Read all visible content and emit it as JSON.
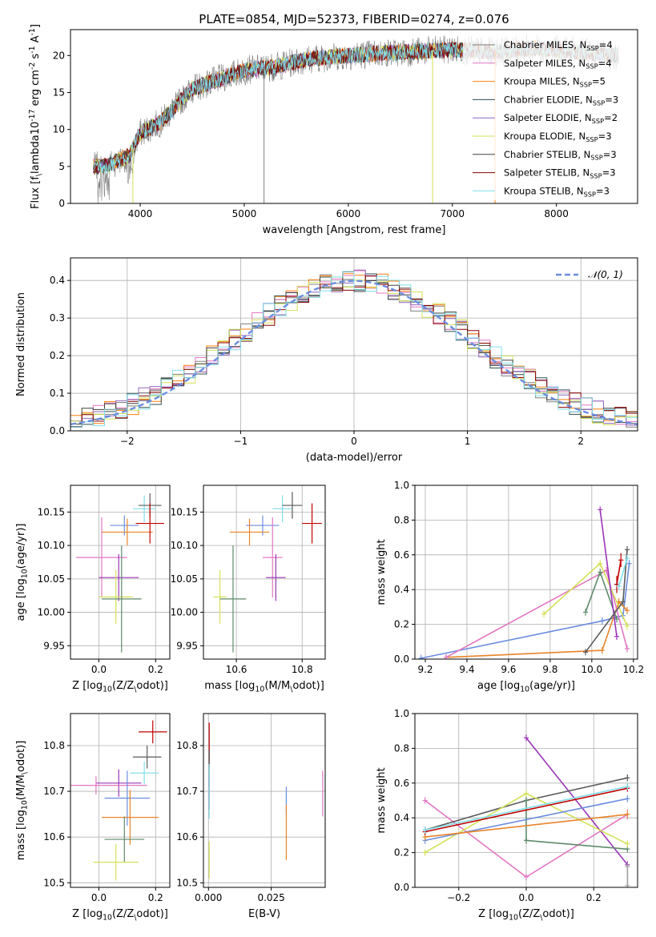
{
  "figure_title": "PLATE=0854, MJD=52373, FIBERID=0274, z=0.076",
  "chart_data": [
    {
      "id": "spectrum",
      "type": "line",
      "xlabel": "wavelength [Angstrom, rest frame]",
      "ylabel": "Flux [f$_\\lambda$10$^{-17}$ erg cm$^{-2}$ s$^{-1}$ A$^{-1}$]",
      "xlim": [
        3330,
        8780
      ],
      "ylim": [
        0,
        23.5
      ],
      "xticks": [
        4000,
        5000,
        6000,
        7000,
        8000
      ],
      "yticks": [
        0,
        5,
        10,
        15,
        20
      ],
      "grid": false,
      "legend": "right",
      "x_extent": [
        3550,
        8600
      ],
      "continuum": {
        "x": [
          3550,
          3700,
          3900,
          4000,
          4200,
          4500,
          4800,
          5000,
          5300,
          5600,
          6000,
          6300,
          6600,
          7000,
          7400,
          7800,
          8200,
          8600
        ],
        "y": [
          5,
          5.2,
          6.5,
          9.5,
          11,
          15.5,
          17,
          18,
          18.5,
          19.5,
          20,
          20.3,
          20.5,
          20.8,
          20.5,
          21,
          20.5,
          20
        ]
      },
      "series": [
        {
          "name": "Chabrier MILES, N$_{SSP}$=4",
          "color": "#808080"
        },
        {
          "name": "Salpeter MILES, N$_{SSP}$=4",
          "color": "#e377c2"
        },
        {
          "name": "Kroupa MILES, N$_{SSP}$=5",
          "color": "#ff7f0e"
        },
        {
          "name": "Chabrier ELODIE, N$_{SSP}$=3",
          "color": "#2f4f4f"
        },
        {
          "name": "Salpeter ELODIE, N$_{SSP}$=2",
          "color": "#9467bd"
        },
        {
          "name": "Kroupa ELODIE, N$_{SSP}$=3",
          "color": "#d4e157"
        },
        {
          "name": "Chabrier STELIB, N$_{SSP}$=3",
          "color": "#404040"
        },
        {
          "name": "Salpeter STELIB, N$_{SSP}$=3",
          "color": "#8b0000"
        },
        {
          "name": "Kroupa STELIB, N$_{SSP}$=3",
          "color": "#80deea"
        }
      ]
    },
    {
      "id": "residuals",
      "type": "line",
      "xlabel": "(data-model)/error",
      "ylabel": "Normed distribution",
      "xlim": [
        -2.5,
        2.5
      ],
      "ylim": [
        0,
        0.46
      ],
      "xticks": [
        -2,
        -1,
        0,
        1,
        2
      ],
      "yticks": [
        0.0,
        0.1,
        0.2,
        0.3,
        0.4
      ],
      "grid": true,
      "legend": "top-right",
      "normal_label": "$\\mathcal{N}(0,1)$",
      "bin_width": 0.1,
      "hist_colors": [
        "#808080",
        "#e377c2",
        "#ff7f0e",
        "#2f4f4f",
        "#9467bd",
        "#d4e157",
        "#404040",
        "#8b0000",
        "#80deea"
      ]
    },
    {
      "id": "age-vs-Z",
      "type": "scatter",
      "xlabel": "Z [log$_{10}$($Z/Z_\\odot$)]",
      "ylabel": "age  [log$_{10}$($age/yr$)]",
      "xlim": [
        -0.1,
        0.25
      ],
      "ylim": [
        9.93,
        10.19
      ],
      "xticks": [
        0.0,
        0.2
      ],
      "yticks": [
        9.95,
        10.0,
        10.05,
        10.1,
        10.15
      ],
      "grid": true,
      "points": [
        {
          "x": 0.09,
          "y": 10.13,
          "xerr": 0.05,
          "yerr": 0.015,
          "color": "#6b8de0"
        },
        {
          "x": 0.1,
          "y": 10.12,
          "xerr": 0.09,
          "yerr": 0.02,
          "color": "#e8842a"
        },
        {
          "x": 0.16,
          "y": 10.155,
          "xerr": 0.04,
          "yerr": 0.02,
          "color": "#80deea"
        },
        {
          "x": 0.18,
          "y": 10.16,
          "xerr": 0.04,
          "yerr": 0.018,
          "color": "#5a5a5a"
        },
        {
          "x": 0.18,
          "y": 10.133,
          "xerr": 0.05,
          "yerr": 0.03,
          "color": "#c00000"
        },
        {
          "x": 0.01,
          "y": 10.082,
          "xerr": 0.09,
          "yerr": 0.06,
          "color": "#e377c2"
        },
        {
          "x": 0.07,
          "y": 10.052,
          "xerr": 0.07,
          "yerr": 0.035,
          "color": "#9a35b8"
        },
        {
          "x": 0.06,
          "y": 10.023,
          "xerr": 0.06,
          "yerr": 0.04,
          "color": "#d4e157"
        },
        {
          "x": 0.08,
          "y": 10.02,
          "xerr": 0.07,
          "yerr": 0.08,
          "color": "#5e8a6a"
        }
      ]
    },
    {
      "id": "age-vs-mass",
      "type": "scatter",
      "xlabel": "mass [log$_{10}$($M/M_\\odot$)]",
      "ylabel": "",
      "xlim": [
        10.5,
        10.87
      ],
      "ylim": [
        9.93,
        10.19
      ],
      "xticks": [
        10.6,
        10.8
      ],
      "yticks": [
        9.95,
        10.0,
        10.05,
        10.1,
        10.15
      ],
      "grid": true,
      "points": [
        {
          "x": 10.68,
          "y": 10.13,
          "xerr": 0.05,
          "yerr": 0.015,
          "color": "#6b8de0"
        },
        {
          "x": 10.64,
          "y": 10.12,
          "xerr": 0.06,
          "yerr": 0.02,
          "color": "#e8842a"
        },
        {
          "x": 10.74,
          "y": 10.155,
          "xerr": 0.03,
          "yerr": 0.02,
          "color": "#80deea"
        },
        {
          "x": 10.77,
          "y": 10.16,
          "xerr": 0.03,
          "yerr": 0.02,
          "color": "#5a5a5a"
        },
        {
          "x": 10.83,
          "y": 10.133,
          "xerr": 0.03,
          "yerr": 0.03,
          "color": "#c00000"
        },
        {
          "x": 10.71,
          "y": 10.082,
          "xerr": 0.03,
          "yerr": 0.06,
          "color": "#e377c2"
        },
        {
          "x": 10.72,
          "y": 10.052,
          "xerr": 0.03,
          "yerr": 0.035,
          "color": "#9a35b8"
        },
        {
          "x": 10.55,
          "y": 10.023,
          "xerr": 0.02,
          "yerr": 0.04,
          "color": "#d4e157"
        },
        {
          "x": 10.59,
          "y": 10.02,
          "xerr": 0.04,
          "yerr": 0.08,
          "color": "#5e8a6a"
        }
      ]
    },
    {
      "id": "weight-vs-age",
      "type": "line",
      "xlabel": "age  [log$_{10}$($age/yr$)]",
      "ylabel": "mass weight",
      "xlim": [
        9.15,
        10.22
      ],
      "ylim": [
        0,
        1.0
      ],
      "xticks": [
        9.2,
        9.4,
        9.6,
        9.8,
        10.0,
        10.2
      ],
      "yticks": [
        0.0,
        0.2,
        0.4,
        0.6,
        0.8,
        1.0
      ],
      "grid": true,
      "series": [
        {
          "color": "#6b8de0",
          "x": [
            9.18,
            10.05,
            10.15,
            10.18
          ],
          "y": [
            0.005,
            0.22,
            0.25,
            0.55
          ],
          "err": [
            0.02,
            0.02,
            0.02,
            0.02
          ]
        },
        {
          "color": "#e8842a",
          "x": [
            9.3,
            10.05,
            10.13,
            10.17
          ],
          "y": [
            0.01,
            0.05,
            0.33,
            0.28
          ],
          "err": [
            0.01,
            0.02,
            0.02,
            0.02
          ]
        },
        {
          "color": "#e377c2",
          "x": [
            9.3,
            10.07,
            10.17
          ],
          "y": [
            0.01,
            0.51,
            0.06
          ],
          "err": [
            0.01,
            0.02,
            0.02
          ]
        },
        {
          "color": "#d4e157",
          "x": [
            9.77,
            10.04,
            10.17
          ],
          "y": [
            0.26,
            0.55,
            0.19
          ],
          "err": [
            0.01,
            0.02,
            0.02
          ]
        },
        {
          "color": "#5e8a6a",
          "x": [
            9.97,
            10.04,
            10.12
          ],
          "y": [
            0.27,
            0.5,
            0.23
          ],
          "err": [
            0.02,
            0.02,
            0.02
          ]
        },
        {
          "color": "#9a35b8",
          "x": [
            10.04,
            10.12
          ],
          "y": [
            0.86,
            0.13
          ],
          "err": [
            0.01,
            0.02
          ]
        },
        {
          "color": "#5a5a5a",
          "x": [
            9.97,
            10.15,
            10.17
          ],
          "y": [
            0.04,
            0.33,
            0.63
          ],
          "err": [
            0.01,
            0.02,
            0.02
          ]
        },
        {
          "color": "#c00000",
          "x": [
            10.12,
            10.14
          ],
          "y": [
            0.43,
            0.57
          ],
          "err": [
            0.05,
            0.04
          ]
        },
        {
          "color": "#80deea",
          "x": [
            10.13,
            10.17
          ],
          "y": [
            0.42,
            0.58
          ],
          "err": [
            0.02,
            0.02
          ]
        }
      ]
    },
    {
      "id": "mass-vs-Z",
      "type": "scatter",
      "xlabel": "Z [log$_{10}$($Z/Z_\\odot$)]",
      "ylabel": "mass [log$_{10}$($M/M_\\odot$)]",
      "xlim": [
        -0.1,
        0.25
      ],
      "ylim": [
        10.49,
        10.87
      ],
      "xticks": [
        0.0,
        0.2
      ],
      "yticks": [
        10.5,
        10.6,
        10.7,
        10.8
      ],
      "grid": true,
      "points": [
        {
          "x": 0.19,
          "y": 10.83,
          "xerr": 0.05,
          "yerr": 0.025,
          "color": "#c00000"
        },
        {
          "x": 0.17,
          "y": 10.775,
          "xerr": 0.05,
          "yerr": 0.025,
          "color": "#5a5a5a"
        },
        {
          "x": 0.16,
          "y": 10.74,
          "xerr": 0.05,
          "yerr": 0.025,
          "color": "#80deea"
        },
        {
          "x": 0.07,
          "y": 10.718,
          "xerr": 0.08,
          "yerr": 0.03,
          "color": "#9a35b8"
        },
        {
          "x": -0.01,
          "y": 10.713,
          "xerr": 0.18,
          "yerr": 0.02,
          "color": "#e377c2"
        },
        {
          "x": 0.1,
          "y": 10.685,
          "xerr": 0.08,
          "yerr": 0.06,
          "color": "#6b8de0"
        },
        {
          "x": 0.11,
          "y": 10.643,
          "xerr": 0.1,
          "yerr": 0.06,
          "color": "#e8842a"
        },
        {
          "x": 0.09,
          "y": 10.595,
          "xerr": 0.07,
          "yerr": 0.05,
          "color": "#5e8a6a"
        },
        {
          "x": 0.06,
          "y": 10.545,
          "xerr": 0.08,
          "yerr": 0.04,
          "color": "#d4e157"
        }
      ]
    },
    {
      "id": "mass-vs-EBV",
      "type": "scatter",
      "xlabel": "E(B-V)",
      "ylabel": "",
      "xlim": [
        -0.002,
        0.0465
      ],
      "ylim": [
        10.49,
        10.87
      ],
      "xticks": [
        0.0,
        0.025
      ],
      "yticks": [
        10.5,
        10.6,
        10.7,
        10.8
      ],
      "grid": true,
      "points": [
        {
          "x": 0.0003,
          "y": 10.8,
          "yerr": 0.05,
          "color": "#c00000"
        },
        {
          "x": 0.0003,
          "y": 10.75,
          "yerr": 0.04,
          "color": "#5a5a5a"
        },
        {
          "x": 0.0003,
          "y": 10.7,
          "yerr": 0.04,
          "color": "#9a35b8"
        },
        {
          "x": 0.0003,
          "y": 10.7,
          "yerr": 0.06,
          "color": "#80deea"
        },
        {
          "x": 0.0003,
          "y": 10.55,
          "yerr": 0.04,
          "color": "#d4e157"
        },
        {
          "x": 0.031,
          "y": 10.68,
          "yerr": 0.03,
          "color": "#6b8de0"
        },
        {
          "x": 0.031,
          "y": 10.61,
          "yerr": 0.06,
          "color": "#e8842a"
        },
        {
          "x": 0.0455,
          "y": 10.695,
          "yerr": 0.05,
          "color": "#e377c2"
        }
      ]
    },
    {
      "id": "weight-vs-Z",
      "type": "line",
      "xlabel": "Z [log$_{10}$($Z/Z_\\odot$)]",
      "ylabel": "mass weight",
      "xlim": [
        -0.33,
        0.33
      ],
      "ylim": [
        0,
        1.0
      ],
      "xticks": [
        -0.2,
        0.0,
        0.2
      ],
      "yticks": [
        0.0,
        0.2,
        0.4,
        0.6,
        0.8,
        1.0
      ],
      "grid": true,
      "series": [
        {
          "color": "#e377c2",
          "x": [
            -0.3,
            0.0,
            0.3
          ],
          "y": [
            0.5,
            0.06,
            0.42
          ],
          "err": [
            0.01,
            0.01,
            0.03
          ]
        },
        {
          "color": "#9a35b8",
          "x": [
            0.0,
            0.3
          ],
          "y": [
            0.86,
            0.13
          ],
          "err": [
            0.01,
            0.02
          ]
        },
        {
          "color": "#5a5a5a",
          "x": [
            -0.3,
            0.0,
            0.3
          ],
          "y": [
            0.33,
            0.5,
            0.63
          ],
          "err": [
            0.02,
            0.02,
            0.02
          ]
        },
        {
          "color": "#5e8a6a",
          "x": [
            0.0,
            0.3
          ],
          "y": [
            0.27,
            0.22
          ],
          "err": [
            0.02,
            0.02
          ]
        },
        {
          "color": "#5e8a6a",
          "x": [
            0.0,
            0.0
          ],
          "y": [
            0.27,
            0.5
          ],
          "err": [
            0.0,
            0.0
          ]
        },
        {
          "color": "#d4e157",
          "x": [
            -0.3,
            0.0,
            0.3
          ],
          "y": [
            0.2,
            0.54,
            0.25
          ],
          "err": [
            0.01,
            0.02,
            0.02
          ]
        },
        {
          "color": "#6b8de0",
          "x": [
            -0.3,
            0.3
          ],
          "y": [
            0.27,
            0.51
          ],
          "err": [
            0.02,
            0.02
          ]
        },
        {
          "color": "#e8842a",
          "x": [
            -0.3,
            0.3
          ],
          "y": [
            0.29,
            0.42
          ],
          "err": [
            0.02,
            0.02
          ]
        },
        {
          "color": "#c00000",
          "x": [
            -0.3,
            0.3
          ],
          "y": [
            0.32,
            0.57
          ],
          "err": [
            0.02,
            0.02
          ]
        },
        {
          "color": "#80deea",
          "x": [
            -0.3,
            0.3
          ],
          "y": [
            0.33,
            0.58
          ],
          "err": [
            0.02,
            0.02
          ]
        },
        {
          "color": "#a0a0a0",
          "x": [
            0.3,
            0.3
          ],
          "y": [
            0.01,
            0.12
          ],
          "err": [
            0.02,
            0.02
          ]
        }
      ]
    }
  ]
}
